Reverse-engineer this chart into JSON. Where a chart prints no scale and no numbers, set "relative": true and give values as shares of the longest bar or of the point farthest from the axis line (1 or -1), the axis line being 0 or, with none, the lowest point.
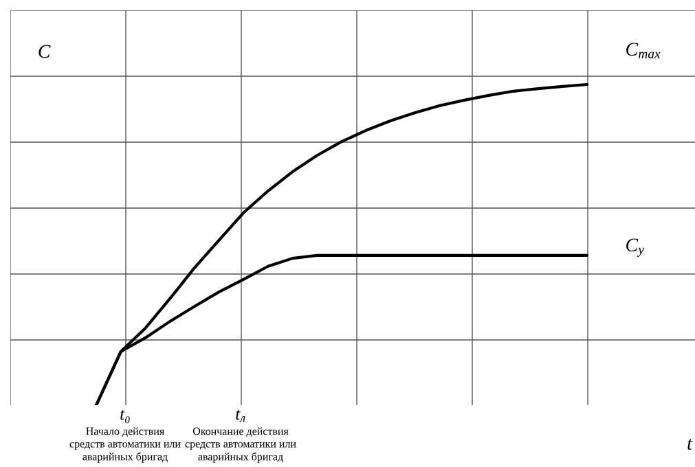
{
  "chart_data": {
    "type": "line",
    "relative": true,
    "xlabel": "t",
    "ylabel": "C",
    "grid": true,
    "legend": false,
    "marker": "none",
    "line_style": "solid",
    "categories": [
      null,
      null,
      null,
      null,
      null,
      null,
      null,
      null,
      null,
      null,
      null,
      null,
      null,
      null,
      null,
      null,
      null,
      null,
      null,
      null,
      null
    ],
    "series": [
      {
        "name": "C$_{max}$",
        "color": "#000000",
        "values": [
          0,
          0.167,
          0.24,
          0.332,
          0.428,
          0.514,
          0.6,
          0.668,
          0.728,
          0.779,
          0.822,
          0.857,
          0.887,
          0.912,
          0.934,
          0.951,
          0.966,
          0.979,
          0.987,
          0.994,
          1
        ]
      },
      {
        "name": "C$_{y}$",
        "color": "#000000",
        "values": [
          0,
          0.167,
          0.21,
          0.261,
          0.308,
          0.353,
          0.392,
          0.433,
          0.458,
          0.467,
          0.467,
          0.467,
          0.467,
          0.467,
          0.467,
          0.467,
          0.467,
          0.467,
          0.467,
          0.467,
          0.467
        ]
      }
    ],
    "annotations": [
      "t₀",
      "Начало действия\nсредств автоматики или\nаварийных бригад",
      "t$_{л}$",
      "Окончание действия\nсредств автоматики или\nаварийных бригад"
    ]
  }
}
